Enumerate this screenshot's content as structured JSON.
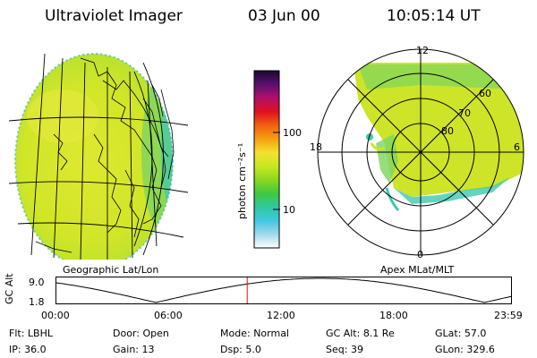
{
  "header": {
    "title": "Ultraviolet Imager",
    "date": "03 Jun 00",
    "time": "10:05:14 UT"
  },
  "left_panel": {
    "caption": "Geographic Lat/Lon"
  },
  "right_panel": {
    "caption": "Apex MLat/MLT",
    "mlt_labels": {
      "top": "12",
      "left": "18",
      "right": "6",
      "bottom": "0"
    },
    "lat_rings": [
      "60",
      "70",
      "80"
    ]
  },
  "colorbar": {
    "unit_label": "photon cm⁻²s⁻¹",
    "ticks": [
      "100",
      "10"
    ],
    "colors": [
      "#1a0830",
      "#5a1070",
      "#b0106a",
      "#e01020",
      "#f06010",
      "#f5a010",
      "#f4e030",
      "#c8e820",
      "#8cd820",
      "#40c840",
      "#30c8a0",
      "#40c8e0",
      "#a0d8ec",
      "#ffffff"
    ]
  },
  "orbit": {
    "axis_title": "GC Alt",
    "ymax": "9.0",
    "ymin": "1.8",
    "ymax_value": 9.0,
    "ymin_value": 1.8,
    "x_ticks": [
      "00:00",
      "06:00",
      "12:00",
      "18:00",
      "23:59"
    ],
    "marker_fraction": 0.42
  },
  "info": {
    "row1": [
      {
        "label": "Flt:",
        "value": "LBHL"
      },
      {
        "label": "Door:",
        "value": "Open"
      },
      {
        "label": "Mode:",
        "value": "Normal"
      },
      {
        "label": "GC Alt:",
        "value": "8.1 Re"
      },
      {
        "label": "GLat:",
        "value": "57.0"
      }
    ],
    "row2": [
      {
        "label": "IP:",
        "value": "36.0"
      },
      {
        "label": "Gain:",
        "value": "13"
      },
      {
        "label": "Dsp:",
        "value": "5.0"
      },
      {
        "label": "Seq:",
        "value": "39"
      },
      {
        "label": "GLon:",
        "value": "329.6"
      }
    ]
  }
}
